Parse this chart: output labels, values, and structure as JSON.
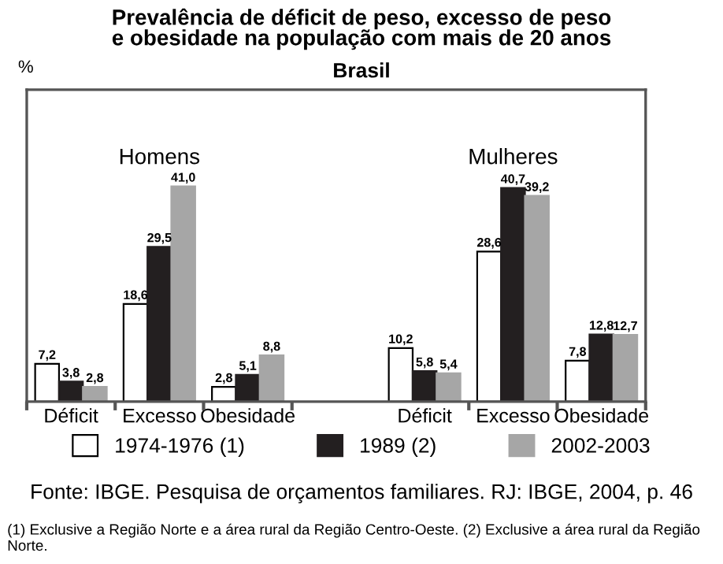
{
  "chart_data": {
    "type": "bar",
    "title": "Prevalência de déficit de peso, excesso de peso\ne obesidade na população com mais de 20 anos",
    "subtitle": "Brasil",
    "categories": [
      "Déficit",
      "Excesso",
      "Obesidade",
      null,
      "Déficit",
      "Excesso",
      "Obesidade"
    ],
    "series": [
      {
        "name": "1974-1976 (1)",
        "color": "#ffffff",
        "values": [
          7.2,
          18.6,
          2.8,
          null,
          10.2,
          28.6,
          7.8
        ],
        "value_labels": [
          "7,2",
          "18,6",
          "2,8",
          null,
          "10,2",
          "28,6",
          "7,8"
        ]
      },
      {
        "name": "1989 (2)",
        "color": "#231f20",
        "values": [
          3.8,
          29.5,
          5.1,
          null,
          5.8,
          40.7,
          12.8
        ],
        "value_labels": [
          "3,8",
          "29,5",
          "5,1",
          null,
          "5,8",
          "40,7",
          "12,8"
        ]
      },
      {
        "name": "2002-2003",
        "color": "#a6a6a6",
        "values": [
          2.8,
          41.0,
          8.8,
          null,
          5.4,
          39.2,
          12.7
        ],
        "value_labels": [
          "2,8",
          "41,0",
          "8,8",
          null,
          "5,4",
          "39,2",
          "12,7"
        ]
      }
    ],
    "tick_labels": "x",
    "legend": "bottom",
    "grid": false,
    "annotations": [
      "Homens",
      "Mulheres",
      "Fonte: IBGE. Pesquisa de orçamentos familiares. RJ: IBGE, 2004, p. 46",
      "(1) Exclusive a Região Norte e a área rural da Região Centro-Oeste. (2) Exclusive a área rural da Região Norte.",
      "%"
    ]
  }
}
